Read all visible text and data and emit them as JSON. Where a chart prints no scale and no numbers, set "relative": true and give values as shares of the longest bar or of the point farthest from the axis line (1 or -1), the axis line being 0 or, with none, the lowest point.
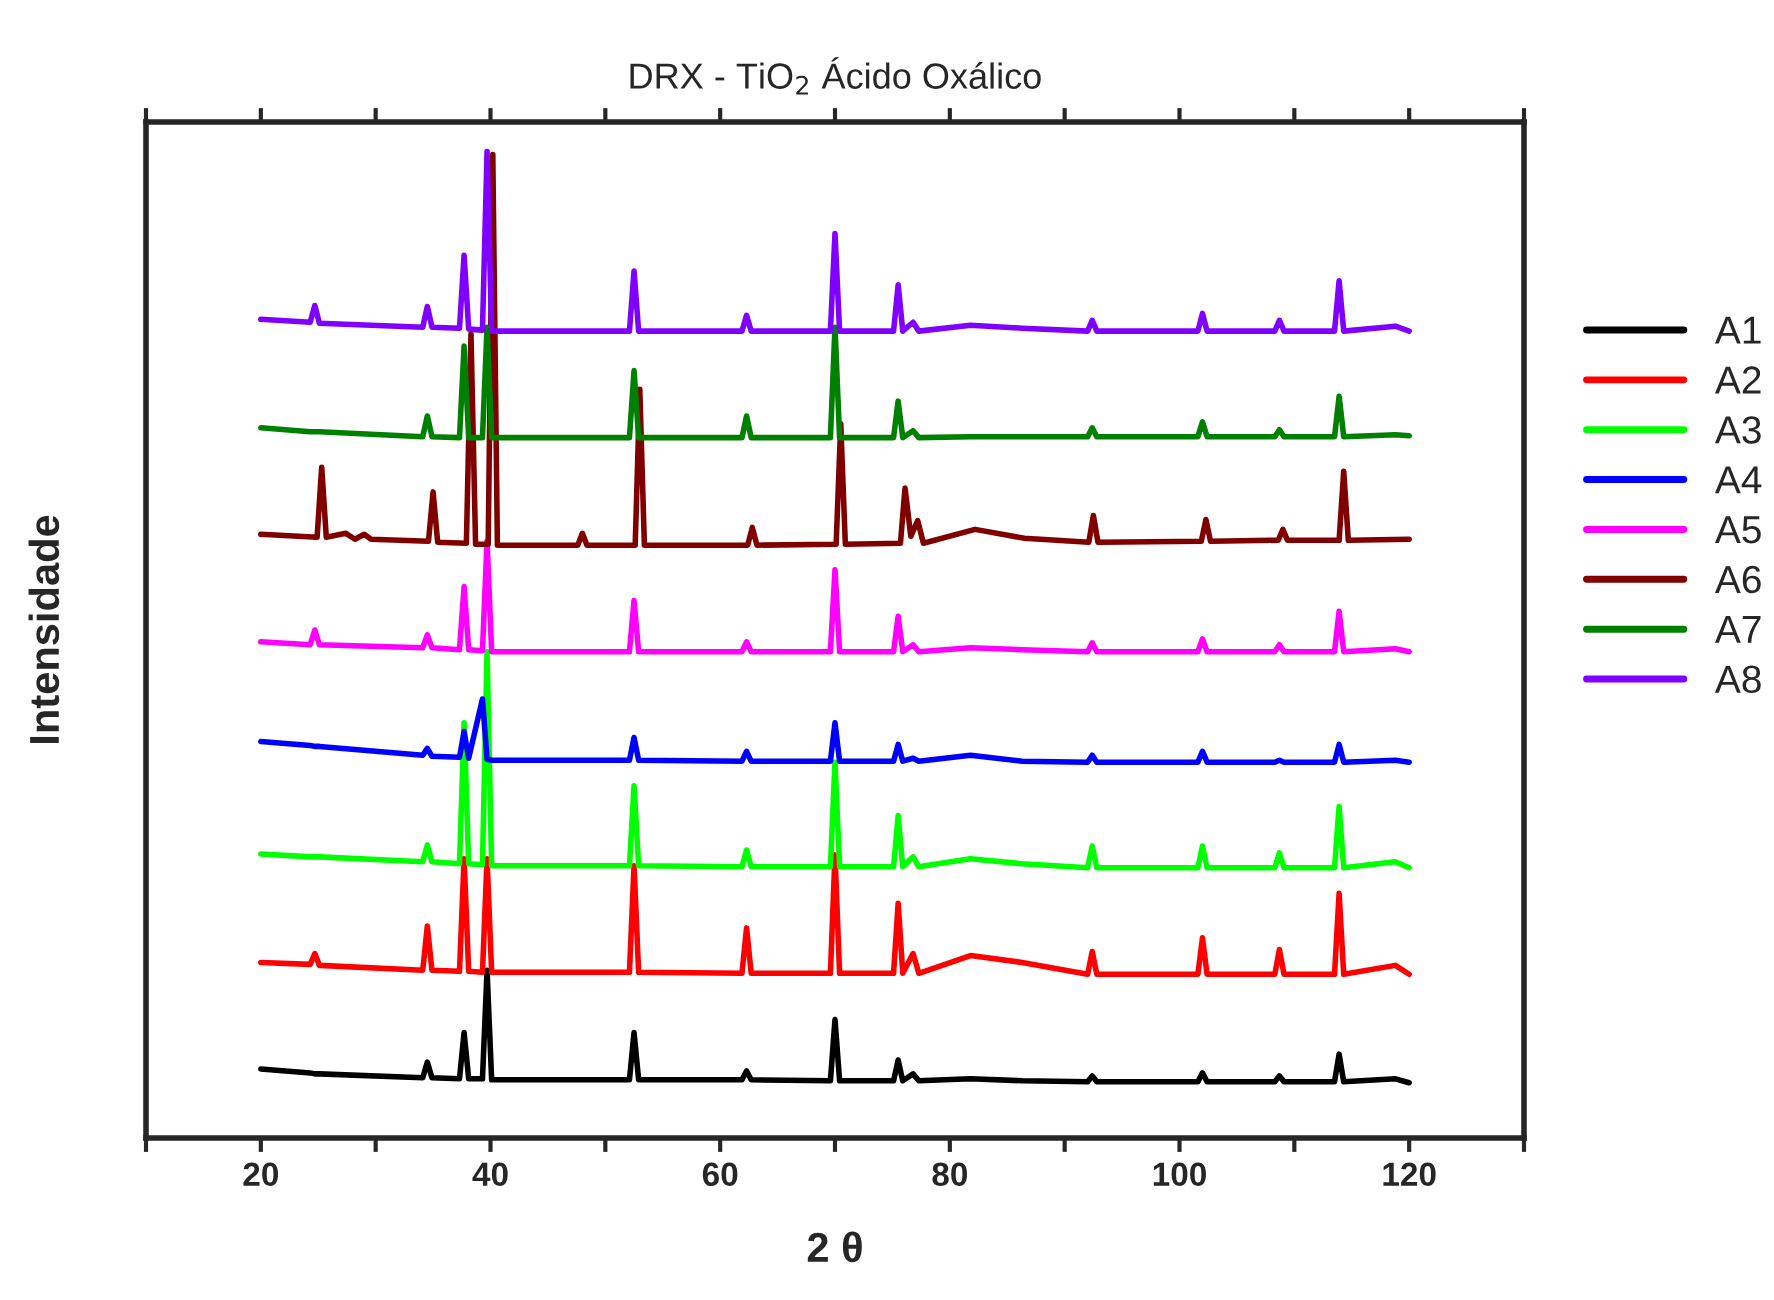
{
  "chart_data": {
    "type": "line",
    "title": "DRX - TiO$_{2}$ Ácido Oxálico",
    "xlabel": "2 θ",
    "ylabel": "Intensidade",
    "relative": true,
    "xlim": [
      10,
      130
    ],
    "xticks": [
      {
        "value": 10,
        "label": null
      },
      20,
      {
        "value": 30,
        "label": null
      },
      40,
      {
        "value": 50,
        "label": null
      },
      60,
      {
        "value": 70,
        "label": null
      },
      80,
      {
        "value": 90,
        "label": null
      },
      100,
      {
        "value": 110,
        "label": null
      },
      120,
      {
        "value": 130,
        "label": null
      }
    ],
    "grid": false,
    "legend": "right",
    "marker": "none",
    "line_style": "solid",
    "x": [
      20,
      24.3,
      24.7,
      25.1,
      34.1,
      34.5,
      34.9,
      37.3,
      37.7,
      38.1,
      39.3,
      39.7,
      40.1,
      45,
      52.1,
      52.5,
      52.9,
      61.9,
      62.3,
      62.7,
      69.6,
      70.0,
      70.4,
      75.1,
      75.5,
      75.9,
      76.8,
      77.3,
      81.8,
      86.3,
      92.0,
      92.4,
      92.8,
      101.6,
      102.0,
      102.4,
      108.3,
      108.7,
      109.1,
      113.5,
      113.9,
      114.3,
      118.8,
      120
    ],
    "series": [
      {
        "name": "A1",
        "color": "#000000",
        "values": [
          0.07,
          0.066,
          0.065,
          0.065,
          0.061,
          0.077,
          0.061,
          0.06,
          0.107,
          0.06,
          0.06,
          0.17,
          0.059,
          0.059,
          0.059,
          0.107,
          0.059,
          0.059,
          0.068,
          0.059,
          0.058,
          0.12,
          0.058,
          0.058,
          0.079,
          0.058,
          0.065,
          0.058,
          0.06,
          0.058,
          0.057,
          0.063,
          0.057,
          0.057,
          0.066,
          0.057,
          0.057,
          0.063,
          0.057,
          0.057,
          0.085,
          0.057,
          0.06,
          0.056
        ]
      },
      {
        "name": "A2",
        "color": "#ff0000",
        "values": [
          0.178,
          0.176,
          0.187,
          0.175,
          0.17,
          0.215,
          0.17,
          0.169,
          0.283,
          0.169,
          0.168,
          0.283,
          0.168,
          0.168,
          0.168,
          0.276,
          0.168,
          0.167,
          0.213,
          0.167,
          0.167,
          0.287,
          0.167,
          0.167,
          0.238,
          0.167,
          0.187,
          0.167,
          0.185,
          0.178,
          0.166,
          0.189,
          0.166,
          0.166,
          0.203,
          0.166,
          0.166,
          0.191,
          0.166,
          0.166,
          0.248,
          0.166,
          0.175,
          0.166
        ]
      },
      {
        "name": "A3",
        "color": "#00ff00",
        "values": [
          0.288,
          0.285,
          0.285,
          0.285,
          0.28,
          0.297,
          0.28,
          0.278,
          0.421,
          0.278,
          0.277,
          0.493,
          0.276,
          0.276,
          0.276,
          0.357,
          0.276,
          0.275,
          0.292,
          0.275,
          0.275,
          0.381,
          0.275,
          0.275,
          0.327,
          0.275,
          0.285,
          0.275,
          0.283,
          0.278,
          0.274,
          0.296,
          0.274,
          0.274,
          0.296,
          0.274,
          0.274,
          0.289,
          0.274,
          0.274,
          0.336,
          0.274,
          0.28,
          0.274
        ]
      },
      {
        "name": "A4",
        "color": "#0000ff",
        "values": [
          0.402,
          0.398,
          0.397,
          0.397,
          0.388,
          0.395,
          0.387,
          0.386,
          0.412,
          0.385,
          0.445,
          0.384,
          0.383,
          0.383,
          0.383,
          0.406,
          0.383,
          0.382,
          0.392,
          0.382,
          0.382,
          0.421,
          0.382,
          0.382,
          0.399,
          0.382,
          0.385,
          0.382,
          0.388,
          0.382,
          0.381,
          0.388,
          0.381,
          0.381,
          0.392,
          0.381,
          0.381,
          0.383,
          0.381,
          0.381,
          0.399,
          0.381,
          0.383,
          0.381
        ]
      },
      {
        "name": "A5",
        "color": "#ff00ff",
        "values": [
          0.503,
          0.5,
          0.515,
          0.5,
          0.497,
          0.51,
          0.497,
          0.495,
          0.559,
          0.495,
          0.494,
          0.605,
          0.493,
          0.493,
          0.493,
          0.545,
          0.493,
          0.493,
          0.503,
          0.493,
          0.493,
          0.576,
          0.493,
          0.493,
          0.529,
          0.493,
          0.5,
          0.493,
          0.497,
          0.495,
          0.493,
          0.502,
          0.493,
          0.493,
          0.506,
          0.493,
          0.493,
          0.5,
          0.493,
          0.493,
          0.534,
          0.493,
          0.496,
          0.493
        ]
      },
      {
        "name": "A6",
        "color": "#800000",
        "x": [
          20,
          24.9,
          25.3,
          25.7,
          27.4,
          28.2,
          29,
          29.6,
          34.6,
          35,
          35.4,
          37.9,
          38.3,
          38.7,
          39.8,
          40.2,
          40.6,
          47.6,
          48,
          48.4,
          52.6,
          53,
          53.4,
          62.4,
          62.8,
          63.2,
          70.1,
          70.5,
          70.9,
          75.7,
          76.1,
          76.6,
          77.2,
          77.7,
          82.2,
          86.5,
          92.1,
          92.5,
          92.9,
          101.9,
          102.3,
          102.7,
          108.6,
          109,
          109.4,
          113.9,
          114.3,
          114.7,
          120
        ],
        "values": [
          0.612,
          0.609,
          0.68,
          0.609,
          0.613,
          0.607,
          0.612,
          0.607,
          0.605,
          0.655,
          0.604,
          0.603,
          0.815,
          0.602,
          0.602,
          0.997,
          0.601,
          0.601,
          0.613,
          0.601,
          0.601,
          0.759,
          0.601,
          0.601,
          0.619,
          0.601,
          0.602,
          0.724,
          0.602,
          0.603,
          0.659,
          0.61,
          0.626,
          0.603,
          0.617,
          0.608,
          0.604,
          0.631,
          0.604,
          0.605,
          0.627,
          0.605,
          0.606,
          0.617,
          0.606,
          0.606,
          0.676,
          0.606,
          0.607
        ]
      },
      {
        "name": "A7",
        "color": "#008000",
        "values": [
          0.72,
          0.716,
          0.716,
          0.716,
          0.711,
          0.732,
          0.711,
          0.71,
          0.803,
          0.71,
          0.71,
          0.822,
          0.71,
          0.71,
          0.71,
          0.778,
          0.71,
          0.71,
          0.732,
          0.71,
          0.71,
          0.822,
          0.71,
          0.71,
          0.747,
          0.71,
          0.717,
          0.71,
          0.711,
          0.711,
          0.711,
          0.72,
          0.711,
          0.711,
          0.726,
          0.711,
          0.711,
          0.718,
          0.711,
          0.711,
          0.752,
          0.711,
          0.713,
          0.712
        ]
      },
      {
        "name": "A8",
        "color": "#8000ff",
        "values": [
          0.83,
          0.827,
          0.844,
          0.826,
          0.822,
          0.843,
          0.822,
          0.821,
          0.895,
          0.82,
          0.819,
          1.0,
          0.818,
          0.818,
          0.818,
          0.879,
          0.818,
          0.818,
          0.834,
          0.818,
          0.818,
          0.917,
          0.818,
          0.818,
          0.865,
          0.818,
          0.827,
          0.818,
          0.824,
          0.821,
          0.818,
          0.829,
          0.818,
          0.818,
          0.836,
          0.818,
          0.818,
          0.829,
          0.818,
          0.818,
          0.869,
          0.818,
          0.823,
          0.818
        ]
      }
    ]
  }
}
